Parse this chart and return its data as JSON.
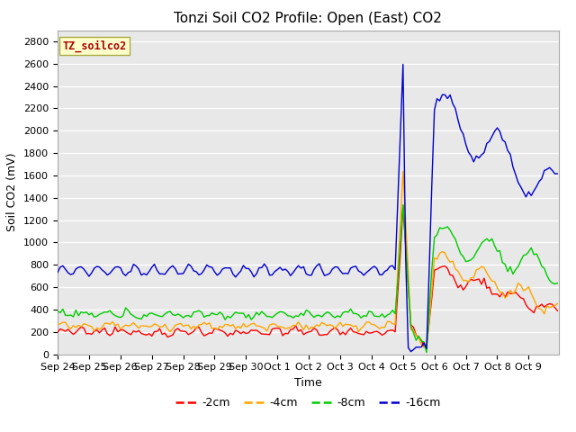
{
  "title": "Tonzi Soil CO2 Profile: Open (East) CO2",
  "ylabel": "Soil CO2 (mV)",
  "xlabel": "Time",
  "legend_label": "TZ_soilco2",
  "legend_entries": [
    "-2cm",
    "-4cm",
    "-8cm",
    "-16cm"
  ],
  "line_colors": [
    "#ff0000",
    "#ffa500",
    "#00cc00",
    "#0000cc"
  ],
  "ylim": [
    0,
    2900
  ],
  "yticks": [
    0,
    200,
    400,
    600,
    800,
    1000,
    1200,
    1400,
    1600,
    1800,
    2000,
    2200,
    2400,
    2600,
    2800
  ],
  "fig_bg": "#ffffff",
  "plot_bg": "#e8e8e8",
  "grid_color": "#ffffff",
  "title_fontsize": 11,
  "axis_fontsize": 9,
  "tick_fontsize": 8
}
